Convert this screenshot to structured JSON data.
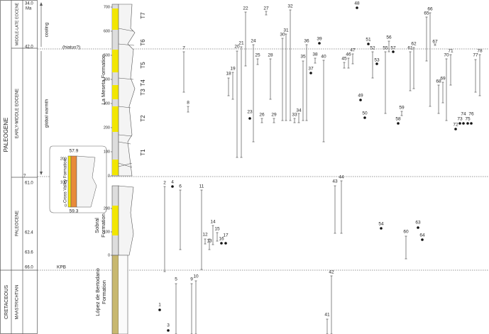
{
  "periods": [
    "PALEOGENE",
    "CRETACEOUS"
  ],
  "epochs": [
    "MIDDLE-LATE EOCENE",
    "EARLY-MIDDLE EOCENE",
    "PALEOCENE",
    "MAASTRICHTIAN"
  ],
  "ages": [
    "34.0",
    "Ma",
    "42.0",
    "?",
    "61.0",
    "62.4",
    "63.6",
    "66.0"
  ],
  "annotations": [
    "cooling",
    "global warmth",
    "(hiatus?)",
    "KPB"
  ],
  "formations": [
    "La Meseta Formation",
    "Sobral",
    "Formation",
    "López de Bertodano",
    "Formation",
    "Cross Valley Formation"
  ],
  "units": [
    "T1",
    "T2",
    "T3",
    "T4",
    "T5",
    "T6",
    "T7"
  ],
  "meseta_ticks": [
    "0",
    "100",
    "200",
    "300",
    "400",
    "500",
    "600",
    "700"
  ],
  "sobral_ticks": [
    "0",
    "100",
    "200"
  ],
  "inset": {
    "top_age": "57.9",
    "bottom_age": "59.3",
    "ticks": [
      "0",
      "100",
      "200"
    ]
  },
  "taxa": [
    "1",
    "2",
    "3",
    "4",
    "5",
    "6",
    "7",
    "8",
    "9",
    "10",
    "11",
    "12",
    "13",
    "14",
    "15",
    "16",
    "17",
    "18",
    "19",
    "20",
    "21",
    "22",
    "23",
    "24",
    "25",
    "26",
    "27",
    "28",
    "29",
    "30",
    "31",
    "32",
    "33",
    "34",
    "35",
    "36",
    "37",
    "38",
    "39",
    "40",
    "41",
    "42",
    "43",
    "44",
    "45",
    "46",
    "47",
    "48",
    "49",
    "50",
    "51",
    "52",
    "53",
    "54",
    "55",
    "56",
    "57",
    "58",
    "59",
    "60",
    "61",
    "62",
    "63",
    "64",
    "65",
    "66",
    "67",
    "68",
    "69",
    "70",
    "71",
    "72",
    "73",
    "74",
    "75",
    "76",
    "77",
    "78"
  ]
}
